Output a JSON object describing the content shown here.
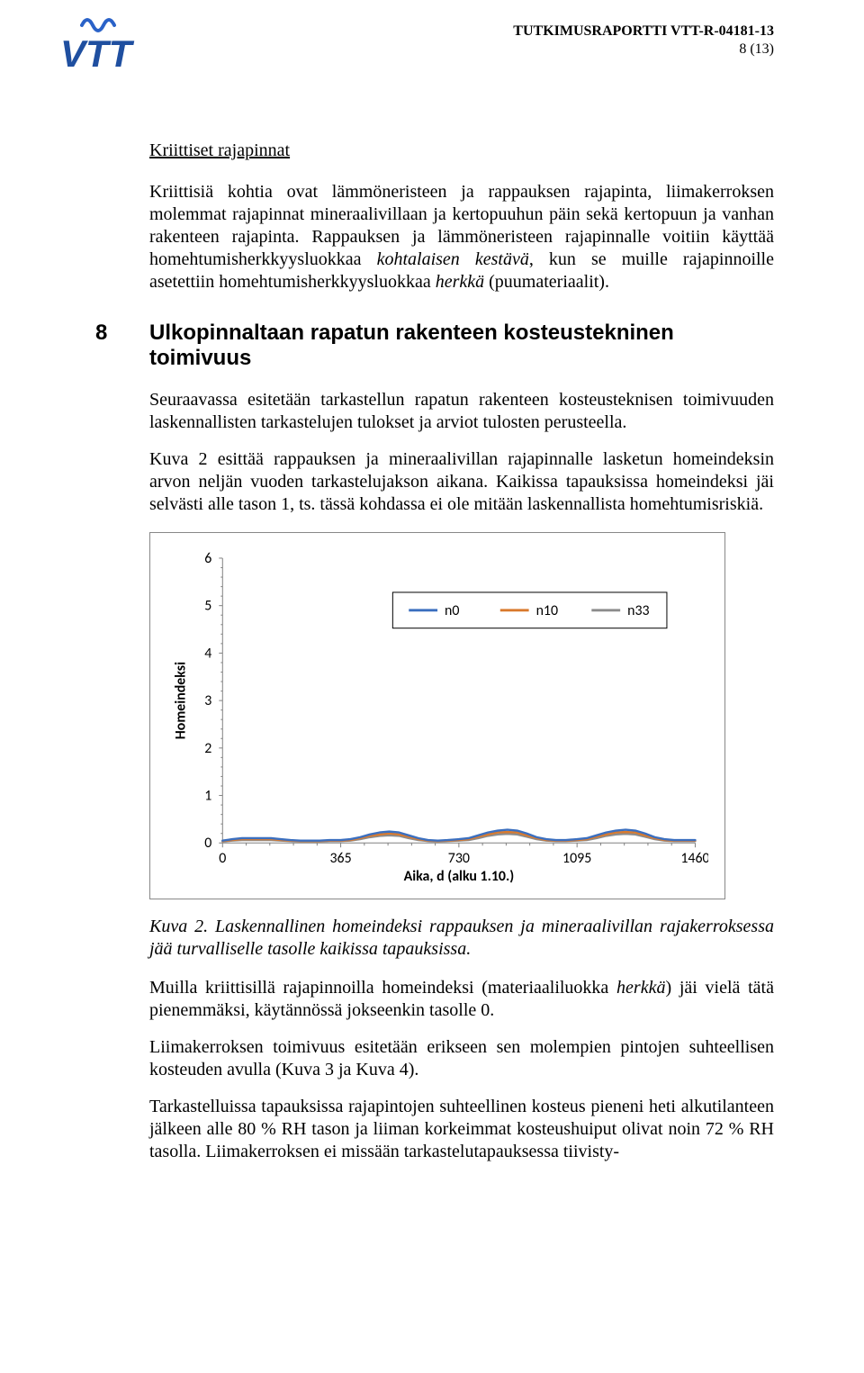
{
  "header": {
    "report_line": "TUTKIMUSRAPORTTI VTT-R-04181-13",
    "page_indicator": "8 (13)"
  },
  "logo": {
    "text": "VTT",
    "accent_color": "#1f4fa0",
    "wave_color": "#2a62c8"
  },
  "section_underlined_title": "Kriittiset rajapinnat",
  "para1_pre": "Kriittisiä kohtia ovat lämmöneristeen ja rappauksen rajapinta, liimakerroksen molemmat rajapinnat mineraalivillaan ja kertopuuhun päin sekä kertopuun ja vanhan rakenteen rajapinta. Rappauksen ja lämmöneristeen rajapinnalle voitiin käyttää homehtumisherkkyysluokkaa ",
  "para1_kohtalaisen": "kohtalaisen kestävä",
  "para1_mid": ", kun se muille rajapinnoille asetettiin homehtumisherkkyysluokkaa ",
  "para1_herkka": "herkkä",
  "para1_post": " (puumateriaalit).",
  "h2": {
    "num": "8",
    "title": "Ulkopinnaltaan rapatun rakenteen kosteustekninen toimivuus"
  },
  "para2": "Seuraavassa esitetään tarkastellun rapatun rakenteen kosteusteknisen toimivuuden laskennallisten tarkastelujen tulokset ja arviot tulosten perusteella.",
  "para3": "Kuva 2 esittää rappauksen ja mineraalivillan rajapinnalle lasketun homeindeksin arvon neljän vuoden tarkastelujakson aikana. Kaikissa tapauksissa homeindeksi jäi selvästi alle tason 1, ts. tässä kohdassa ei ole mitään laskennallista homehtumisriskiä.",
  "chart": {
    "ylabel": "Homeindeksi",
    "xlabel": "Aika, d (alku 1.10.)",
    "ylim": [
      0,
      6
    ],
    "ytick_step": 1,
    "xlim": [
      0,
      1460
    ],
    "xticks": [
      0,
      365,
      730,
      1095,
      1460
    ],
    "xtick_labels": [
      "0",
      "365",
      "730",
      "1095",
      "1460"
    ],
    "ytick_labels": [
      "0",
      "1",
      "2",
      "3",
      "4",
      "5",
      "6"
    ],
    "x_minor_count_per_major": 5,
    "y_minor_count_per_major": 5,
    "border_color": "#888888",
    "axis_color": "#808080",
    "background_color": "#ffffff",
    "tick_font_size": 16,
    "label_font_size": 16,
    "series": [
      {
        "name": "n0",
        "color": "#3b6fbf",
        "width": 2.4
      },
      {
        "name": "n10",
        "color": "#d97a2e",
        "width": 2.4
      },
      {
        "name": "n33",
        "color": "#8c8c8c",
        "width": 2.4
      }
    ],
    "legend_items": [
      "n0",
      "n10",
      "n33"
    ],
    "x_values": [
      0,
      30,
      60,
      90,
      120,
      150,
      180,
      210,
      240,
      270,
      300,
      330,
      365,
      395,
      425,
      455,
      485,
      515,
      545,
      575,
      605,
      635,
      665,
      695,
      730,
      760,
      790,
      820,
      850,
      880,
      910,
      940,
      970,
      1000,
      1030,
      1060,
      1095,
      1125,
      1155,
      1185,
      1215,
      1245,
      1275,
      1305,
      1335,
      1365,
      1395,
      1425,
      1460
    ],
    "n0_values": [
      0.05,
      0.08,
      0.1,
      0.1,
      0.1,
      0.1,
      0.08,
      0.06,
      0.05,
      0.05,
      0.05,
      0.06,
      0.06,
      0.08,
      0.12,
      0.18,
      0.22,
      0.24,
      0.22,
      0.16,
      0.1,
      0.06,
      0.05,
      0.06,
      0.08,
      0.1,
      0.16,
      0.22,
      0.26,
      0.28,
      0.26,
      0.2,
      0.12,
      0.08,
      0.06,
      0.06,
      0.08,
      0.1,
      0.16,
      0.22,
      0.26,
      0.28,
      0.26,
      0.2,
      0.12,
      0.08,
      0.06,
      0.06,
      0.06
    ],
    "n10_values": [
      0.04,
      0.06,
      0.08,
      0.08,
      0.08,
      0.08,
      0.06,
      0.05,
      0.04,
      0.04,
      0.04,
      0.05,
      0.05,
      0.06,
      0.1,
      0.15,
      0.18,
      0.2,
      0.18,
      0.13,
      0.08,
      0.05,
      0.04,
      0.05,
      0.06,
      0.08,
      0.13,
      0.18,
      0.22,
      0.23,
      0.22,
      0.16,
      0.1,
      0.06,
      0.05,
      0.05,
      0.06,
      0.08,
      0.13,
      0.18,
      0.22,
      0.23,
      0.22,
      0.16,
      0.1,
      0.06,
      0.05,
      0.05,
      0.05
    ],
    "n33_values": [
      0.03,
      0.05,
      0.06,
      0.06,
      0.06,
      0.06,
      0.05,
      0.04,
      0.03,
      0.03,
      0.03,
      0.04,
      0.04,
      0.05,
      0.08,
      0.12,
      0.15,
      0.16,
      0.15,
      0.1,
      0.06,
      0.04,
      0.03,
      0.04,
      0.05,
      0.06,
      0.1,
      0.15,
      0.18,
      0.19,
      0.18,
      0.13,
      0.08,
      0.05,
      0.04,
      0.04,
      0.05,
      0.06,
      0.1,
      0.15,
      0.18,
      0.19,
      0.18,
      0.13,
      0.08,
      0.05,
      0.04,
      0.04,
      0.04
    ]
  },
  "caption": "Kuva 2. Laskennallinen homeindeksi rappauksen ja mineraalivillan rajakerroksessa jää turvalliselle tasolle kaikissa tapauksissa.",
  "para4_pre": "Muilla kriittisillä rajapinnoilla homeindeksi (materiaaliluokka ",
  "para4_herkka": "herkkä",
  "para4_post": ") jäi vielä tätä pienemmäksi, käytännössä jokseenkin tasolle 0.",
  "para5": "Liimakerroksen toimivuus esitetään erikseen sen molempien pintojen suhteellisen kosteuden avulla (Kuva 3 ja Kuva 4).",
  "para6": "Tarkastelluissa tapauksissa rajapintojen suhteellinen kosteus pieneni heti alkutilanteen jälkeen alle 80 % RH tason ja liiman korkeimmat kosteushuiput olivat noin 72 % RH tasolla. Liimakerroksen ei missään tarkastelutapauksessa tiivisty-"
}
